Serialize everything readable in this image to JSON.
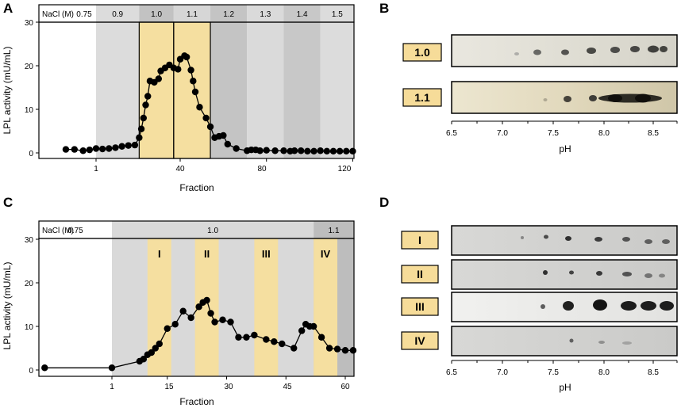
{
  "figure": {
    "panels": {
      "A": "A",
      "B": "B",
      "C": "C",
      "D": "D"
    }
  },
  "panelA": {
    "header_label": "NaCl (M)",
    "header_values": [
      "0.75",
      "0.9",
      "1.0",
      "1.1",
      "1.2",
      "1.3",
      "1.4",
      "1.5"
    ],
    "ylabel": "LPL activity (mU/mL)",
    "xlabel": "Fraction",
    "yticks": [
      "0",
      "10",
      "20",
      "30"
    ],
    "xticks": [
      "1",
      "40",
      "80",
      "120"
    ]
  },
  "panelB": {
    "fractions": [
      "1.0",
      "1.1"
    ],
    "xlabel": "pH",
    "xticks": [
      "6.5",
      "7.0",
      "7.5",
      "8.0",
      "8.5"
    ]
  },
  "panelC": {
    "header_label": "NaCl (M)",
    "header_values": [
      "0.75",
      "1.0",
      "1.1"
    ],
    "pools": [
      "I",
      "II",
      "III",
      "IV"
    ],
    "ylabel": "LPL activity (mU/mL)",
    "xlabel": "Fraction",
    "yticks": [
      "0",
      "10",
      "20",
      "30"
    ],
    "xticks": [
      "1",
      "15",
      "30",
      "45",
      "60"
    ]
  },
  "panelD": {
    "pools": [
      "I",
      "II",
      "III",
      "IV"
    ],
    "xlabel": "pH",
    "xticks": [
      "6.5",
      "7.0",
      "7.5",
      "8.0",
      "8.5"
    ]
  },
  "colors": {
    "highlight": "#f5dfa0",
    "shade_light": "#dedede",
    "shade_mid": "#cfcfcf",
    "shade_dark": "#bdbdbd"
  },
  "chart_data": [
    {
      "id": "A",
      "type": "line",
      "title": "",
      "xlabel": "Fraction",
      "ylabel": "LPL activity (mU/mL)",
      "ylim": [
        0,
        30
      ],
      "x": [
        -13,
        -9,
        -5,
        -2,
        1,
        4,
        7,
        10,
        13,
        16,
        19,
        21,
        22,
        23,
        24,
        25,
        26,
        28,
        30,
        31,
        33,
        35,
        37,
        39,
        40,
        42,
        43,
        45,
        46,
        47,
        49,
        52,
        54,
        56,
        58,
        60,
        62,
        66,
        71,
        73,
        75,
        77,
        80,
        84,
        88,
        91,
        93,
        96,
        99,
        102,
        105,
        108,
        111,
        114,
        117,
        120
      ],
      "values": [
        0.8,
        0.8,
        0.5,
        0.7,
        1.0,
        0.9,
        1.0,
        1.2,
        1.5,
        1.7,
        1.8,
        3.5,
        5.5,
        8.0,
        11.0,
        13.0,
        16.5,
        16.2,
        17.0,
        18.8,
        19.5,
        20.2,
        19.5,
        19.2,
        21.5,
        22.3,
        22.0,
        19.0,
        16.5,
        14.0,
        10.5,
        8.0,
        6.0,
        3.5,
        3.8,
        4.0,
        2.0,
        1.0,
        0.5,
        0.7,
        0.7,
        0.5,
        0.6,
        0.5,
        0.5,
        0.4,
        0.5,
        0.5,
        0.4,
        0.4,
        0.5,
        0.4,
        0.4,
        0.4,
        0.4,
        0.4
      ],
      "segments": [
        {
          "label": "0.75",
          "from": -20,
          "to": 1
        },
        {
          "label": "0.9",
          "from": 1,
          "to": 21
        },
        {
          "label": "1.0",
          "from": 21,
          "to": 37
        },
        {
          "label": "1.1",
          "from": 37,
          "to": 54
        },
        {
          "label": "1.2",
          "from": 54,
          "to": 71
        },
        {
          "label": "1.3",
          "from": 71,
          "to": 88
        },
        {
          "label": "1.4",
          "from": 88,
          "to": 105
        },
        {
          "label": "1.5",
          "from": 105,
          "to": 125
        }
      ],
      "highlighted": [
        "1.0",
        "1.1"
      ],
      "xlim": [
        -20,
        125
      ]
    },
    {
      "id": "C",
      "type": "line",
      "title": "",
      "xlabel": "Fraction",
      "ylabel": "LPL activity (mU/mL)",
      "ylim": [
        0,
        30
      ],
      "x": [
        -16,
        1,
        8,
        9,
        10,
        11,
        12,
        13,
        15,
        17,
        19,
        21,
        23,
        24,
        25,
        26,
        27,
        29,
        31,
        33,
        35,
        37,
        40,
        42,
        44,
        47,
        49,
        50,
        51,
        52,
        54,
        56,
        58,
        60,
        62
      ],
      "values": [
        0.5,
        0.5,
        2.0,
        2.5,
        3.5,
        4.0,
        5.0,
        6.0,
        9.5,
        10.5,
        13.5,
        12.0,
        14.5,
        15.5,
        16.0,
        13.0,
        11.0,
        11.5,
        11.0,
        7.5,
        7.5,
        8.0,
        7.0,
        6.5,
        6.0,
        5.0,
        9.0,
        10.5,
        10.0,
        10.0,
        7.5,
        5.0,
        4.8,
        4.5,
        4.5
      ],
      "segments": [
        {
          "label": "0.75",
          "from": -18,
          "to": 1
        },
        {
          "label": "1.0",
          "from": 1,
          "to": 52
        },
        {
          "label": "1.1",
          "from": 52,
          "to": 63
        }
      ],
      "pools": [
        {
          "label": "I",
          "from": 10,
          "to": 16
        },
        {
          "label": "II",
          "from": 22,
          "to": 28
        },
        {
          "label": "III",
          "from": 37,
          "to": 43
        },
        {
          "label": "IV",
          "from": 52,
          "to": 58
        }
      ],
      "xlim": [
        -18,
        63
      ]
    }
  ]
}
